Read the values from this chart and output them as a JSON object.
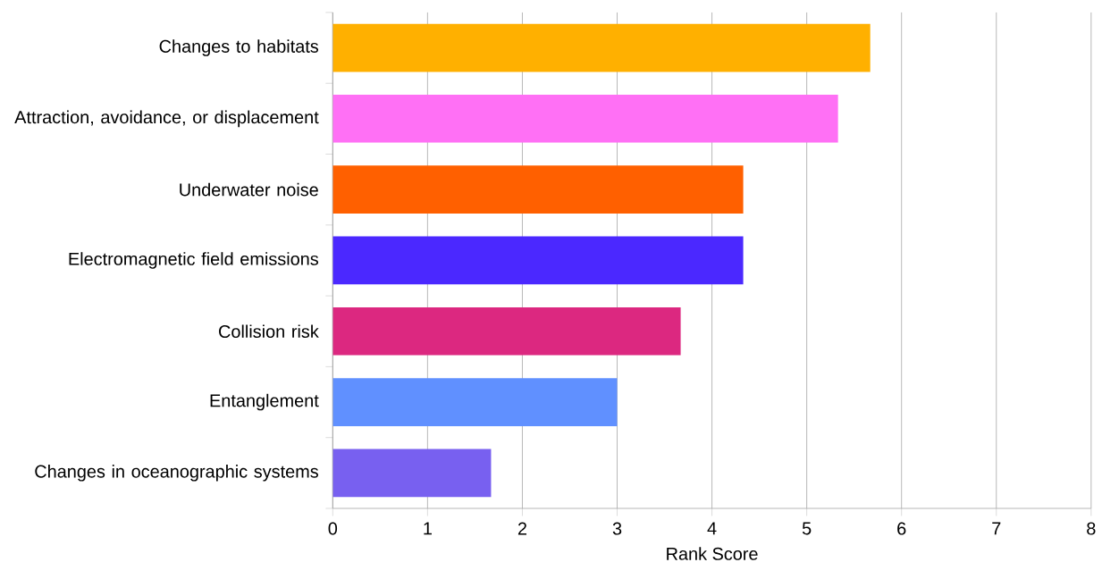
{
  "chart_data": {
    "type": "bar",
    "orientation": "horizontal",
    "xlabel": "Rank Score",
    "categories": [
      "Changes to habitats",
      "Attraction, avoidance, or displacement",
      "Underwater noise",
      "Electromagnetic field emissions",
      "Collision risk",
      "Entanglement",
      "Changes in oceanographic systems"
    ],
    "values": [
      5.67,
      5.33,
      4.33,
      4.33,
      3.67,
      3.0,
      1.67
    ],
    "colors": [
      "#ffb000",
      "#ff70f5",
      "#ff6000",
      "#4b28ff",
      "#dc2880",
      "#6090ff",
      "#7860f0"
    ],
    "xlim": [
      0,
      8
    ],
    "xticks": [
      0,
      1,
      2,
      3,
      4,
      5,
      6,
      7,
      8
    ],
    "grid": "x"
  }
}
